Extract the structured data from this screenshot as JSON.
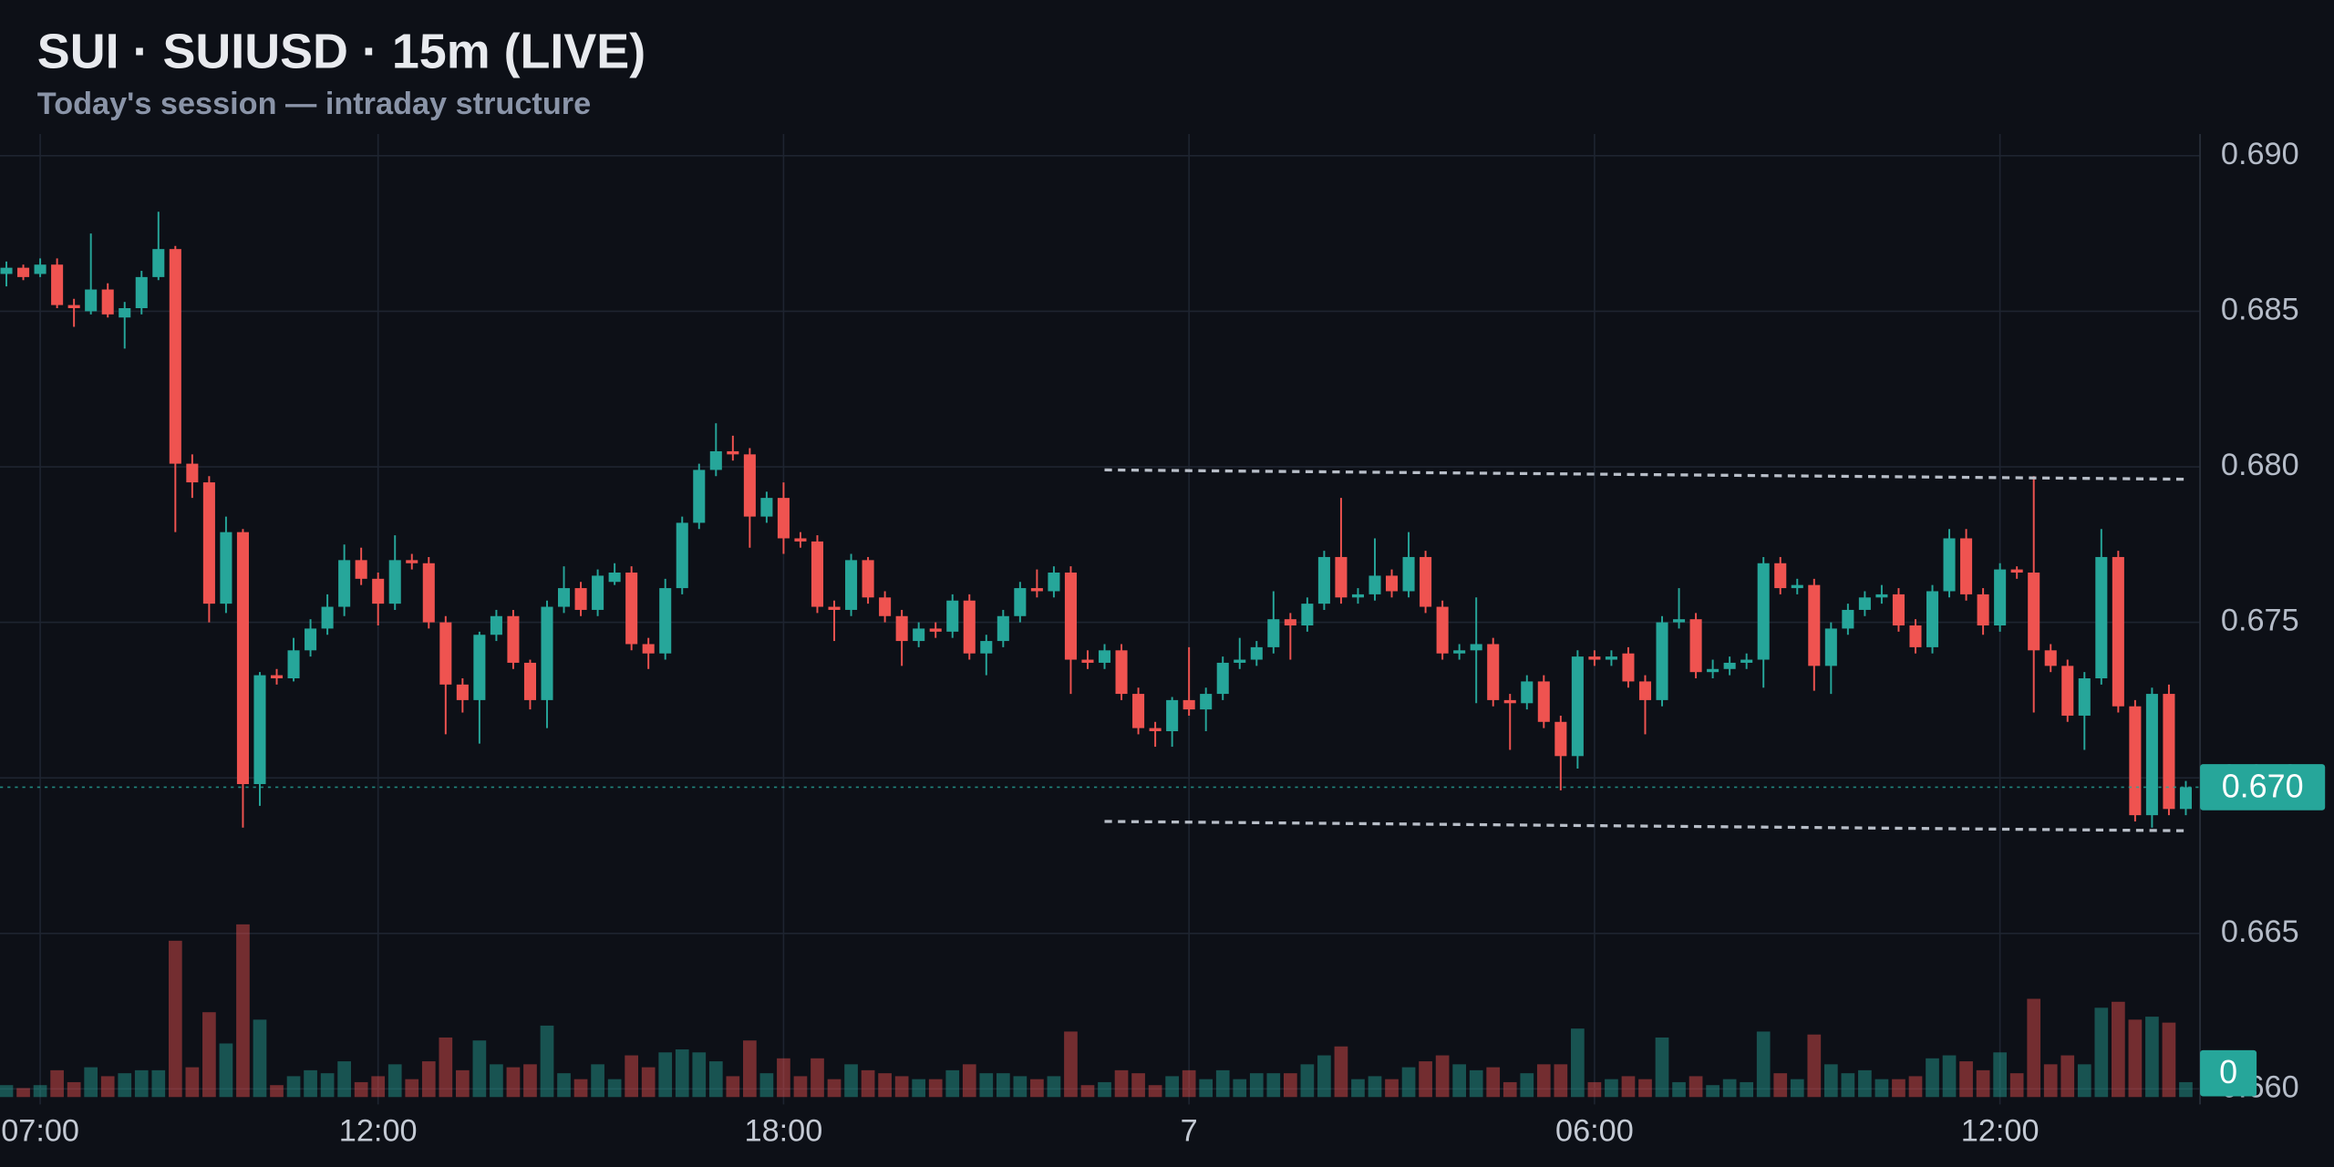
{
  "chart_data": {
    "type": "candlestick",
    "title": "SUI · SUIUSD · 15m (LIVE)",
    "subtitle": "Today's session — intraday structure",
    "categories": [
      null,
      null,
      "07:00",
      null,
      null,
      null,
      null,
      null,
      null,
      null,
      null,
      null,
      null,
      null,
      null,
      null,
      null,
      null,
      null,
      null,
      null,
      null,
      "12:00",
      null,
      null,
      null,
      null,
      null,
      null,
      null,
      null,
      null,
      null,
      null,
      null,
      null,
      null,
      null,
      null,
      null,
      null,
      null,
      null,
      null,
      null,
      null,
      "18:00",
      null,
      null,
      null,
      null,
      null,
      null,
      null,
      null,
      null,
      null,
      null,
      null,
      null,
      null,
      null,
      null,
      null,
      null,
      null,
      null,
      null,
      null,
      null,
      "7",
      null,
      null,
      null,
      null,
      null,
      null,
      null,
      null,
      null,
      null,
      null,
      null,
      null,
      null,
      null,
      null,
      null,
      null,
      null,
      null,
      null,
      null,
      null,
      "06:00",
      null,
      null,
      null,
      null,
      null,
      null,
      null,
      null,
      null,
      null,
      null,
      null,
      null,
      null,
      null,
      null,
      null,
      null,
      null,
      null,
      null,
      null,
      null,
      "12:00",
      null,
      null,
      null,
      null,
      null,
      null,
      null,
      null,
      null,
      null,
      null
    ],
    "open": [
      0.6862,
      0.6864,
      0.6862,
      0.6865,
      0.6852,
      0.685,
      0.6857,
      0.6848,
      0.6851,
      0.6861,
      0.687,
      0.6801,
      0.6795,
      0.6756,
      0.6779,
      0.6698,
      0.6733,
      0.6732,
      0.6741,
      0.6748,
      0.6755,
      0.677,
      0.6764,
      0.6756,
      0.677,
      0.6769,
      0.675,
      0.673,
      0.6725,
      0.6746,
      0.6752,
      0.6737,
      0.6725,
      0.6755,
      0.6761,
      0.6754,
      0.6763,
      0.6766,
      0.6743,
      0.674,
      0.6761,
      0.6782,
      0.6799,
      0.6805,
      0.6804,
      0.6784,
      0.679,
      0.6777,
      0.6776,
      0.6755,
      0.6754,
      0.677,
      0.6758,
      0.6752,
      0.6744,
      0.6748,
      0.6747,
      0.6757,
      0.674,
      0.6744,
      0.6752,
      0.6761,
      0.676,
      0.6766,
      0.6738,
      0.6737,
      0.6741,
      0.6727,
      0.6716,
      0.6715,
      0.6725,
      0.6722,
      0.6727,
      0.6737,
      0.6738,
      0.6742,
      0.6751,
      0.6749,
      0.6756,
      0.6771,
      0.6758,
      0.6759,
      0.6765,
      0.676,
      0.6771,
      0.6755,
      0.674,
      0.6741,
      0.6743,
      0.6725,
      0.6724,
      0.6731,
      0.6718,
      0.6707,
      0.6739,
      0.6738,
      0.674,
      0.6731,
      0.6725,
      0.675,
      0.6751,
      0.6734,
      0.6735,
      0.6737,
      0.6738,
      0.6769,
      0.6761,
      0.6762,
      0.6736,
      0.6748,
      0.6754,
      0.6758,
      0.6759,
      0.6749,
      0.6742,
      0.676,
      0.6777,
      0.6759,
      0.6749,
      0.6767,
      0.6766,
      0.6741,
      0.6736,
      0.672,
      0.6732,
      0.6771,
      0.6723,
      0.6688,
      0.6727,
      0.669
    ],
    "high": [
      0.6866,
      0.6865,
      0.6867,
      0.6867,
      0.6854,
      0.6875,
      0.6859,
      0.6853,
      0.6863,
      0.6882,
      0.6871,
      0.6804,
      0.6797,
      0.6784,
      0.678,
      0.6734,
      0.6735,
      0.6745,
      0.6751,
      0.6759,
      0.6775,
      0.6774,
      0.6766,
      0.6778,
      0.6772,
      0.6771,
      0.6752,
      0.6732,
      0.6747,
      0.6754,
      0.6754,
      0.6738,
      0.6757,
      0.6768,
      0.6763,
      0.6767,
      0.6769,
      0.6768,
      0.6745,
      0.6764,
      0.6784,
      0.6801,
      0.6814,
      0.681,
      0.6806,
      0.6792,
      0.6795,
      0.6779,
      0.6778,
      0.6757,
      0.6772,
      0.6771,
      0.676,
      0.6754,
      0.675,
      0.675,
      0.6759,
      0.6759,
      0.6746,
      0.6754,
      0.6763,
      0.6767,
      0.6768,
      0.6768,
      0.6741,
      0.6743,
      0.6743,
      0.6729,
      0.6718,
      0.6726,
      0.6742,
      0.6729,
      0.6739,
      0.6745,
      0.6744,
      0.676,
      0.6753,
      0.6758,
      0.6773,
      0.679,
      0.6761,
      0.6777,
      0.6767,
      0.6779,
      0.6773,
      0.6757,
      0.6743,
      0.6758,
      0.6745,
      0.6727,
      0.6733,
      0.6733,
      0.672,
      0.6741,
      0.6741,
      0.6741,
      0.6742,
      0.6733,
      0.6752,
      0.6761,
      0.6753,
      0.6738,
      0.6739,
      0.674,
      0.6771,
      0.6771,
      0.6764,
      0.6764,
      0.675,
      0.6756,
      0.676,
      0.6762,
      0.6761,
      0.6751,
      0.6762,
      0.678,
      0.678,
      0.6761,
      0.6769,
      0.6768,
      0.6797,
      0.6743,
      0.6738,
      0.6734,
      0.678,
      0.6773,
      0.6725,
      0.6729,
      0.673,
      0.6699
    ],
    "low": [
      0.6858,
      0.686,
      0.6861,
      0.6851,
      0.6845,
      0.6849,
      0.6848,
      0.6838,
      0.6849,
      0.686,
      0.6779,
      0.679,
      0.675,
      0.6753,
      0.6684,
      0.6691,
      0.673,
      0.6731,
      0.6739,
      0.6746,
      0.6752,
      0.6762,
      0.6749,
      0.6754,
      0.6767,
      0.6748,
      0.6714,
      0.6721,
      0.6711,
      0.6744,
      0.6735,
      0.6722,
      0.6716,
      0.6753,
      0.6752,
      0.6752,
      0.6762,
      0.6741,
      0.6735,
      0.6738,
      0.6759,
      0.678,
      0.6797,
      0.6802,
      0.6774,
      0.6782,
      0.6772,
      0.6774,
      0.6753,
      0.6744,
      0.6752,
      0.6756,
      0.675,
      0.6736,
      0.6742,
      0.6745,
      0.6745,
      0.6738,
      0.6733,
      0.6742,
      0.675,
      0.6758,
      0.6758,
      0.6727,
      0.6735,
      0.6735,
      0.6725,
      0.6714,
      0.671,
      0.671,
      0.672,
      0.6715,
      0.6725,
      0.6735,
      0.6736,
      0.674,
      0.6738,
      0.6747,
      0.6754,
      0.6756,
      0.6756,
      0.6757,
      0.6758,
      0.6758,
      0.6753,
      0.6738,
      0.6738,
      0.6724,
      0.6723,
      0.6709,
      0.6722,
      0.6716,
      0.6696,
      0.6703,
      0.6736,
      0.6736,
      0.6729,
      0.6714,
      0.6723,
      0.6748,
      0.6732,
      0.6732,
      0.6733,
      0.6735,
      0.6729,
      0.6759,
      0.6759,
      0.6728,
      0.6727,
      0.6746,
      0.6752,
      0.6756,
      0.6747,
      0.674,
      0.674,
      0.6758,
      0.6757,
      0.6746,
      0.6747,
      0.6764,
      0.6721,
      0.6734,
      0.6718,
      0.6709,
      0.673,
      0.6721,
      0.6686,
      0.6684,
      0.6688,
      0.6688
    ],
    "close": [
      0.6864,
      0.6861,
      0.6865,
      0.6852,
      0.6851,
      0.6857,
      0.6849,
      0.6851,
      0.6861,
      0.687,
      0.6801,
      0.6795,
      0.6756,
      0.6779,
      0.6698,
      0.6733,
      0.6732,
      0.6741,
      0.6748,
      0.6755,
      0.677,
      0.6764,
      0.6756,
      0.677,
      0.6769,
      0.675,
      0.673,
      0.6725,
      0.6746,
      0.6752,
      0.6737,
      0.6725,
      0.6755,
      0.6761,
      0.6754,
      0.6765,
      0.6766,
      0.6743,
      0.674,
      0.6761,
      0.6782,
      0.6799,
      0.6805,
      0.6804,
      0.6784,
      0.679,
      0.6777,
      0.6776,
      0.6755,
      0.6754,
      0.677,
      0.6758,
      0.6752,
      0.6744,
      0.6748,
      0.6747,
      0.6757,
      0.674,
      0.6744,
      0.6752,
      0.6761,
      0.676,
      0.6766,
      0.6738,
      0.6737,
      0.6741,
      0.6727,
      0.6716,
      0.6715,
      0.6725,
      0.6722,
      0.6727,
      0.6737,
      0.6738,
      0.6742,
      0.6751,
      0.6749,
      0.6756,
      0.6771,
      0.6758,
      0.6759,
      0.6765,
      0.676,
      0.6771,
      0.6755,
      0.674,
      0.6741,
      0.6743,
      0.6725,
      0.6724,
      0.6731,
      0.6718,
      0.6707,
      0.6739,
      0.6738,
      0.6739,
      0.6731,
      0.6725,
      0.675,
      0.6751,
      0.6734,
      0.6735,
      0.6737,
      0.6738,
      0.6769,
      0.6761,
      0.6762,
      0.6736,
      0.6748,
      0.6754,
      0.6758,
      0.6759,
      0.6749,
      0.6742,
      0.676,
      0.6777,
      0.6759,
      0.6749,
      0.6767,
      0.6766,
      0.6741,
      0.6736,
      0.672,
      0.6732,
      0.6771,
      0.6723,
      0.6688,
      0.6727,
      0.669,
      0.6697
    ],
    "volume": [
      8,
      6,
      8,
      18,
      10,
      20,
      14,
      16,
      18,
      18,
      105,
      20,
      57,
      36,
      116,
      52,
      8,
      14,
      18,
      16,
      24,
      10,
      14,
      22,
      12,
      24,
      40,
      18,
      38,
      22,
      20,
      22,
      48,
      16,
      12,
      22,
      12,
      28,
      20,
      30,
      32,
      30,
      24,
      14,
      38,
      16,
      26,
      14,
      26,
      12,
      22,
      18,
      16,
      14,
      12,
      12,
      18,
      22,
      16,
      16,
      14,
      12,
      14,
      44,
      8,
      10,
      18,
      16,
      8,
      14,
      18,
      12,
      18,
      12,
      16,
      16,
      16,
      22,
      28,
      34,
      12,
      14,
      12,
      20,
      24,
      28,
      22,
      18,
      20,
      10,
      16,
      22,
      22,
      46,
      10,
      12,
      14,
      12,
      40,
      10,
      14,
      8,
      12,
      10,
      44,
      16,
      12,
      42,
      22,
      16,
      18,
      12,
      12,
      14,
      26,
      28,
      24,
      18,
      30,
      16,
      66,
      22,
      28,
      22,
      60,
      64,
      52,
      54,
      50,
      10
    ],
    "up_color": "#26a69a",
    "down_color": "#ef5350",
    "ylim": [
      0.6595,
      0.6907
    ],
    "yticks": [
      {
        "value": 0.66,
        "label": "0.660"
      },
      {
        "value": 0.665,
        "label": "0.665"
      },
      {
        "value": 0.67,
        "label": "0.670"
      },
      {
        "value": 0.675,
        "label": "0.675"
      },
      {
        "value": 0.68,
        "label": "0.680"
      },
      {
        "value": 0.685,
        "label": "0.685"
      },
      {
        "value": 0.69,
        "label": "0.690"
      }
    ],
    "vlim": [
      0,
      120
    ],
    "vticks": [
      0
    ],
    "last_price": 0.6697,
    "last_price_label": "0.670",
    "levels": [
      {
        "from": 0.6799,
        "to": 0.6796
      },
      {
        "from": 0.6686,
        "to": 0.6683
      }
    ],
    "grid": true
  }
}
